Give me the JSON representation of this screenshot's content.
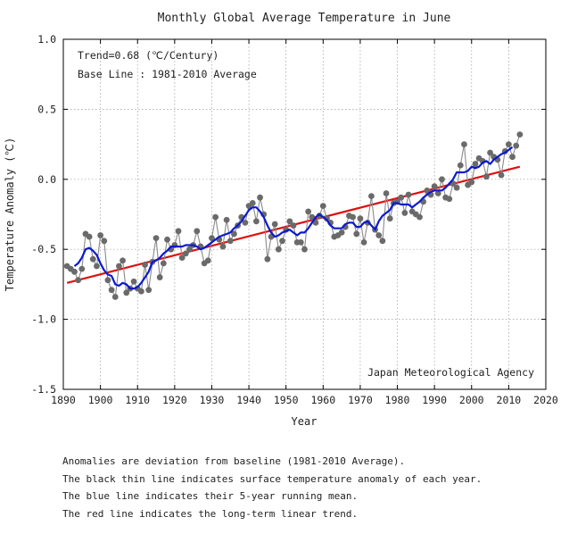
{
  "chart_data": {
    "type": "line",
    "title": "Monthly Global Average Temperature in June",
    "xlabel": "Year",
    "ylabel": "Temperature Anomaly (℃)",
    "xlim": [
      1890,
      2020
    ],
    "ylim": [
      -1.5,
      1.0
    ],
    "x_ticks": [
      1890,
      1900,
      1910,
      1920,
      1930,
      1940,
      1950,
      1960,
      1970,
      1980,
      1990,
      2000,
      2010,
      2020
    ],
    "y_ticks": [
      1.0,
      0.5,
      0.0,
      -0.5,
      -1.0,
      -1.5
    ],
    "y_tick_labels": [
      "1.0",
      "0.5",
      "0.0",
      "-0.5",
      "-1.0",
      "-1.5"
    ],
    "grid": true,
    "annotations": {
      "trend_text": "Trend=0.68 (℃/Century)",
      "baseline_text": "Base Line : 1981-2010 Average",
      "agency_text": "Japan Meteorological Agency"
    },
    "x": [
      1891,
      1892,
      1893,
      1894,
      1895,
      1896,
      1897,
      1898,
      1899,
      1900,
      1901,
      1902,
      1903,
      1904,
      1905,
      1906,
      1907,
      1908,
      1909,
      1910,
      1911,
      1912,
      1913,
      1914,
      1915,
      1916,
      1917,
      1918,
      1919,
      1920,
      1921,
      1922,
      1923,
      1924,
      1925,
      1926,
      1927,
      1928,
      1929,
      1930,
      1931,
      1932,
      1933,
      1934,
      1935,
      1936,
      1937,
      1938,
      1939,
      1940,
      1941,
      1942,
      1943,
      1944,
      1945,
      1946,
      1947,
      1948,
      1949,
      1950,
      1951,
      1952,
      1953,
      1954,
      1955,
      1956,
      1957,
      1958,
      1959,
      1960,
      1961,
      1962,
      1963,
      1964,
      1965,
      1966,
      1967,
      1968,
      1969,
      1970,
      1971,
      1972,
      1973,
      1974,
      1975,
      1976,
      1977,
      1978,
      1979,
      1980,
      1981,
      1982,
      1983,
      1984,
      1985,
      1986,
      1987,
      1988,
      1989,
      1990,
      1991,
      1992,
      1993,
      1994,
      1995,
      1996,
      1997,
      1998,
      1999,
      2000,
      2001,
      2002,
      2003,
      2004,
      2005,
      2006,
      2007,
      2008,
      2009,
      2010,
      2011,
      2012,
      2013
    ],
    "series": [
      {
        "name": "annual anomaly",
        "color": "#6a6a6a",
        "values": [
          -0.62,
          -0.64,
          -0.66,
          -0.72,
          -0.64,
          -0.39,
          -0.41,
          -0.57,
          -0.62,
          -0.4,
          -0.44,
          -0.72,
          -0.79,
          -0.84,
          -0.62,
          -0.58,
          -0.81,
          -0.78,
          -0.73,
          -0.78,
          -0.8,
          -0.61,
          -0.79,
          -0.59,
          -0.42,
          -0.7,
          -0.6,
          -0.43,
          -0.5,
          -0.47,
          -0.37,
          -0.56,
          -0.53,
          -0.5,
          -0.47,
          -0.37,
          -0.48,
          -0.6,
          -0.58,
          -0.42,
          -0.27,
          -0.43,
          -0.48,
          -0.29,
          -0.44,
          -0.39,
          -0.33,
          -0.27,
          -0.31,
          -0.19,
          -0.17,
          -0.3,
          -0.13,
          -0.25,
          -0.57,
          -0.41,
          -0.32,
          -0.5,
          -0.44,
          -0.36,
          -0.3,
          -0.33,
          -0.45,
          -0.45,
          -0.5,
          -0.23,
          -0.27,
          -0.31,
          -0.26,
          -0.19,
          -0.28,
          -0.31,
          -0.41,
          -0.4,
          -0.38,
          -0.34,
          -0.26,
          -0.27,
          -0.39,
          -0.28,
          -0.45,
          -0.31,
          -0.12,
          -0.36,
          -0.4,
          -0.44,
          -0.1,
          -0.28,
          -0.17,
          -0.16,
          -0.13,
          -0.24,
          -0.11,
          -0.23,
          -0.25,
          -0.27,
          -0.16,
          -0.08,
          -0.11,
          -0.05,
          -0.1,
          0.0,
          -0.13,
          -0.14,
          -0.03,
          -0.06,
          0.1,
          0.25,
          -0.04,
          -0.02,
          0.11,
          0.15,
          0.13,
          0.02,
          0.19,
          0.16,
          0.14,
          0.03,
          0.2,
          0.25,
          0.16,
          0.24,
          0.32
        ]
      },
      {
        "name": "5-year running mean",
        "color": "#0a1ad0",
        "values": [
          null,
          null,
          -0.62,
          -0.6,
          -0.56,
          -0.5,
          -0.49,
          -0.51,
          -0.54,
          -0.6,
          -0.65,
          -0.68,
          -0.69,
          -0.75,
          -0.76,
          -0.74,
          -0.75,
          -0.78,
          -0.78,
          -0.77,
          -0.74,
          -0.7,
          -0.66,
          -0.59,
          -0.58,
          -0.56,
          -0.53,
          -0.51,
          -0.48,
          -0.48,
          -0.48,
          -0.48,
          -0.47,
          -0.47,
          -0.47,
          -0.48,
          -0.5,
          -0.49,
          -0.47,
          -0.45,
          -0.43,
          -0.41,
          -0.4,
          -0.39,
          -0.38,
          -0.35,
          -0.33,
          -0.3,
          -0.26,
          -0.22,
          -0.2,
          -0.2,
          -0.23,
          -0.27,
          -0.33,
          -0.38,
          -0.41,
          -0.4,
          -0.38,
          -0.37,
          -0.36,
          -0.38,
          -0.4,
          -0.38,
          -0.38,
          -0.35,
          -0.31,
          -0.27,
          -0.25,
          -0.27,
          -0.29,
          -0.33,
          -0.35,
          -0.35,
          -0.35,
          -0.32,
          -0.31,
          -0.31,
          -0.34,
          -0.34,
          -0.31,
          -0.3,
          -0.33,
          -0.36,
          -0.3,
          -0.26,
          -0.24,
          -0.22,
          -0.17,
          -0.17,
          -0.18,
          -0.18,
          -0.18,
          -0.2,
          -0.18,
          -0.16,
          -0.13,
          -0.11,
          -0.09,
          -0.08,
          -0.08,
          -0.08,
          -0.06,
          -0.03,
          0.0,
          0.05,
          0.05,
          0.05,
          0.06,
          0.09,
          0.08,
          0.09,
          0.12,
          0.13,
          0.11,
          0.14,
          0.16,
          0.18,
          0.19,
          0.21,
          0.23,
          null,
          null
        ]
      },
      {
        "name": "long-term linear trend",
        "color": "#e01010",
        "x": [
          1891,
          2013
        ],
        "values": [
          -0.74,
          0.09
        ]
      }
    ]
  },
  "notes": [
    "Anomalies are deviation from baseline (1981-2010 Average).",
    "The black thin line indicates surface temperature anomaly of each year.",
    "The blue line indicates their 5-year running mean.",
    "The red line indicates the long-term linear trend."
  ]
}
